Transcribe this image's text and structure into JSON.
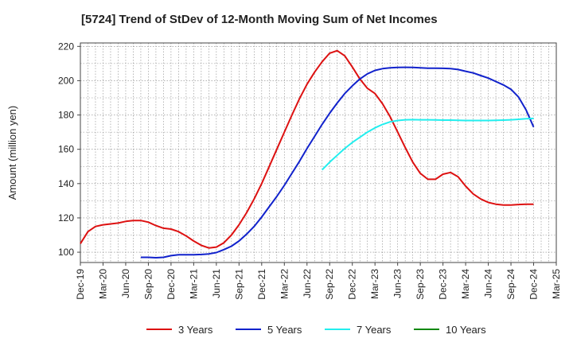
{
  "chart_data": {
    "type": "line",
    "title": "[5724]  Trend of StDev of 12-Month Moving Sum of Net Incomes",
    "xlabel": "",
    "ylabel": "Amount (million yen)",
    "ylim": [
      94,
      222
    ],
    "yticks": [
      100,
      120,
      140,
      160,
      180,
      200,
      220
    ],
    "xlim": [
      "Dec-19",
      "Mar-25"
    ],
    "xtick_labels": [
      "Dec-19",
      "Mar-20",
      "Jun-20",
      "Sep-20",
      "Dec-20",
      "Mar-21",
      "Jun-21",
      "Sep-21",
      "Dec-21",
      "Mar-22",
      "Jun-22",
      "Sep-22",
      "Dec-22",
      "Mar-23",
      "Jun-23",
      "Sep-23",
      "Dec-23",
      "Mar-24",
      "Jun-24",
      "Sep-24",
      "Dec-24",
      "Mar-25"
    ],
    "grid": true,
    "legend_position": "bottom",
    "series": [
      {
        "name": "3 Years",
        "color": "#dd1111",
        "points": [
          [
            "Dec-19",
            105
          ],
          [
            "Jan-20",
            112
          ],
          [
            "Feb-20",
            115
          ],
          [
            "Mar-20",
            116
          ],
          [
            "Apr-20",
            116.5
          ],
          [
            "May-20",
            117
          ],
          [
            "Jun-20",
            118
          ],
          [
            "Jul-20",
            118.5
          ],
          [
            "Aug-20",
            118.5
          ],
          [
            "Sep-20",
            117.5
          ],
          [
            "Oct-20",
            115.5
          ],
          [
            "Nov-20",
            114
          ],
          [
            "Dec-20",
            113.5
          ],
          [
            "Jan-21",
            112
          ],
          [
            "Feb-21",
            109.5
          ],
          [
            "Mar-21",
            106.5
          ],
          [
            "Apr-21",
            104
          ],
          [
            "May-21",
            102.5
          ],
          [
            "Jun-21",
            103
          ],
          [
            "Jul-21",
            105.5
          ],
          [
            "Aug-21",
            110
          ],
          [
            "Sep-21",
            116
          ],
          [
            "Oct-21",
            123
          ],
          [
            "Nov-21",
            131
          ],
          [
            "Dec-21",
            140
          ],
          [
            "Jan-22",
            150
          ],
          [
            "Feb-22",
            160
          ],
          [
            "Mar-22",
            170
          ],
          [
            "Apr-22",
            180
          ],
          [
            "May-22",
            189.5
          ],
          [
            "Jun-22",
            198
          ],
          [
            "Jul-22",
            205
          ],
          [
            "Aug-22",
            211
          ],
          [
            "Sep-22",
            216
          ],
          [
            "Oct-22",
            217.5
          ],
          [
            "Nov-22",
            214.5
          ],
          [
            "Dec-22",
            208
          ],
          [
            "Jan-23",
            201
          ],
          [
            "Feb-23",
            195.5
          ],
          [
            "Mar-23",
            192.5
          ],
          [
            "Apr-23",
            186.5
          ],
          [
            "May-23",
            179
          ],
          [
            "Jun-23",
            170
          ],
          [
            "Jul-23",
            161
          ],
          [
            "Aug-23",
            152.5
          ],
          [
            "Sep-23",
            146
          ],
          [
            "Oct-23",
            142.5
          ],
          [
            "Nov-23",
            142.5
          ],
          [
            "Dec-23",
            145.5
          ],
          [
            "Jan-24",
            146.5
          ],
          [
            "Feb-24",
            144
          ],
          [
            "Mar-24",
            138.5
          ],
          [
            "Apr-24",
            134
          ],
          [
            "May-24",
            131
          ],
          [
            "Jun-24",
            129
          ],
          [
            "Jul-24",
            128
          ],
          [
            "Aug-24",
            127.5
          ],
          [
            "Sep-24",
            127.5
          ],
          [
            "Oct-24",
            127.8
          ],
          [
            "Nov-24",
            128
          ],
          [
            "Dec-24",
            128
          ]
        ]
      },
      {
        "name": "5 Years",
        "color": "#1122cc",
        "points": [
          [
            "Aug-20",
            97
          ],
          [
            "Sep-20",
            97
          ],
          [
            "Oct-20",
            96.8
          ],
          [
            "Nov-20",
            97
          ],
          [
            "Dec-20",
            98
          ],
          [
            "Jan-21",
            98.5
          ],
          [
            "Feb-21",
            98.5
          ],
          [
            "Mar-21",
            98.5
          ],
          [
            "Apr-21",
            98.7
          ],
          [
            "May-21",
            99
          ],
          [
            "Jun-21",
            99.8
          ],
          [
            "Jul-21",
            101.5
          ],
          [
            "Aug-21",
            103.5
          ],
          [
            "Sep-21",
            106.5
          ],
          [
            "Oct-21",
            110.5
          ],
          [
            "Nov-21",
            115
          ],
          [
            "Dec-21",
            120.5
          ],
          [
            "Jan-22",
            126.5
          ],
          [
            "Feb-22",
            132.5
          ],
          [
            "Mar-22",
            139
          ],
          [
            "Apr-22",
            146
          ],
          [
            "May-22",
            153
          ],
          [
            "Jun-22",
            160.5
          ],
          [
            "Jul-22",
            167.5
          ],
          [
            "Aug-22",
            174.5
          ],
          [
            "Sep-22",
            181
          ],
          [
            "Oct-22",
            187
          ],
          [
            "Nov-22",
            192.5
          ],
          [
            "Dec-22",
            197
          ],
          [
            "Jan-23",
            201
          ],
          [
            "Feb-23",
            204
          ],
          [
            "Mar-23",
            206
          ],
          [
            "Apr-23",
            207
          ],
          [
            "May-23",
            207.5
          ],
          [
            "Jun-23",
            207.7
          ],
          [
            "Jul-23",
            207.8
          ],
          [
            "Aug-23",
            207.7
          ],
          [
            "Sep-23",
            207.5
          ],
          [
            "Oct-23",
            207.3
          ],
          [
            "Nov-23",
            207.3
          ],
          [
            "Dec-23",
            207.2
          ],
          [
            "Jan-24",
            207
          ],
          [
            "Feb-24",
            206.5
          ],
          [
            "Mar-24",
            205.5
          ],
          [
            "Apr-24",
            204.5
          ],
          [
            "May-24",
            203
          ],
          [
            "Jun-24",
            201.5
          ],
          [
            "Jul-24",
            199.5
          ],
          [
            "Aug-24",
            197.5
          ],
          [
            "Sep-24",
            195
          ],
          [
            "Oct-24",
            190.5
          ],
          [
            "Nov-24",
            183
          ],
          [
            "Dec-24",
            173
          ]
        ]
      },
      {
        "name": "7 Years",
        "color": "#22eeee",
        "points": [
          [
            "Aug-22",
            148
          ],
          [
            "Sep-22",
            152.5
          ],
          [
            "Oct-22",
            156.5
          ],
          [
            "Nov-22",
            160.5
          ],
          [
            "Dec-22",
            164
          ],
          [
            "Jan-23",
            167
          ],
          [
            "Feb-23",
            170
          ],
          [
            "Mar-23",
            172.5
          ],
          [
            "Apr-23",
            174.5
          ],
          [
            "May-23",
            176
          ],
          [
            "Jun-23",
            176.8
          ],
          [
            "Jul-23",
            177.2
          ],
          [
            "Aug-23",
            177.3
          ],
          [
            "Sep-23",
            177.2
          ],
          [
            "Oct-23",
            177.2
          ],
          [
            "Nov-23",
            177.1
          ],
          [
            "Dec-23",
            177
          ],
          [
            "Jan-24",
            177
          ],
          [
            "Feb-24",
            176.9
          ],
          [
            "Mar-24",
            176.8
          ],
          [
            "Apr-24",
            176.8
          ],
          [
            "May-24",
            176.8
          ],
          [
            "Jun-24",
            176.8
          ],
          [
            "Jul-24",
            176.9
          ],
          [
            "Aug-24",
            177
          ],
          [
            "Sep-24",
            177.2
          ],
          [
            "Oct-24",
            177.5
          ],
          [
            "Nov-24",
            177.8
          ],
          [
            "Dec-24",
            178
          ]
        ]
      },
      {
        "name": "10 Years",
        "color": "#118811",
        "points": []
      }
    ]
  }
}
